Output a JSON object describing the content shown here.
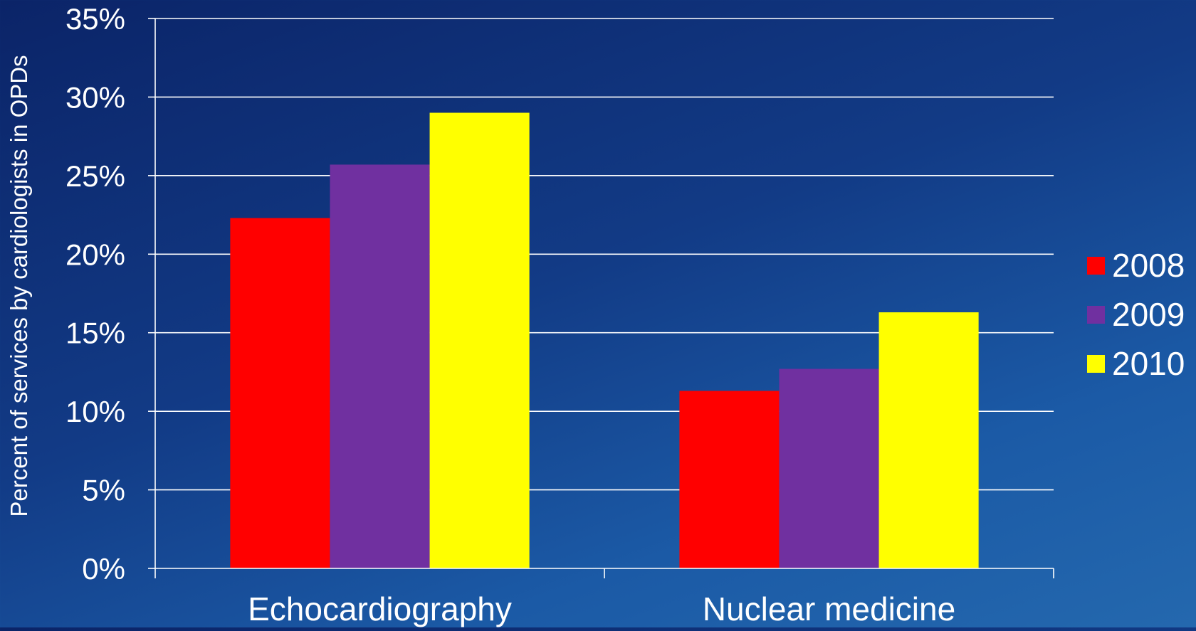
{
  "chart_data": {
    "type": "bar",
    "categories": [
      "Echocardiography",
      "Nuclear medicine"
    ],
    "series": [
      {
        "name": "2008",
        "color": "#ff0000",
        "values": [
          22.3,
          11.3
        ]
      },
      {
        "name": "2009",
        "color": "#7030a0",
        "values": [
          25.7,
          12.7
        ]
      },
      {
        "name": "2010",
        "color": "#ffff00",
        "values": [
          29.0,
          16.3
        ]
      }
    ],
    "ylabel": "Percent of services by cardiologists in OPDs",
    "xlabel": "",
    "title": "",
    "ylim": [
      0,
      35
    ],
    "yticks": [
      0,
      5,
      10,
      15,
      20,
      25,
      30,
      35
    ],
    "ytick_labels": [
      "0%",
      "5%",
      "10%",
      "15%",
      "20%",
      "25%",
      "30%",
      "35%"
    ],
    "grid": true,
    "legend_position": "right"
  }
}
